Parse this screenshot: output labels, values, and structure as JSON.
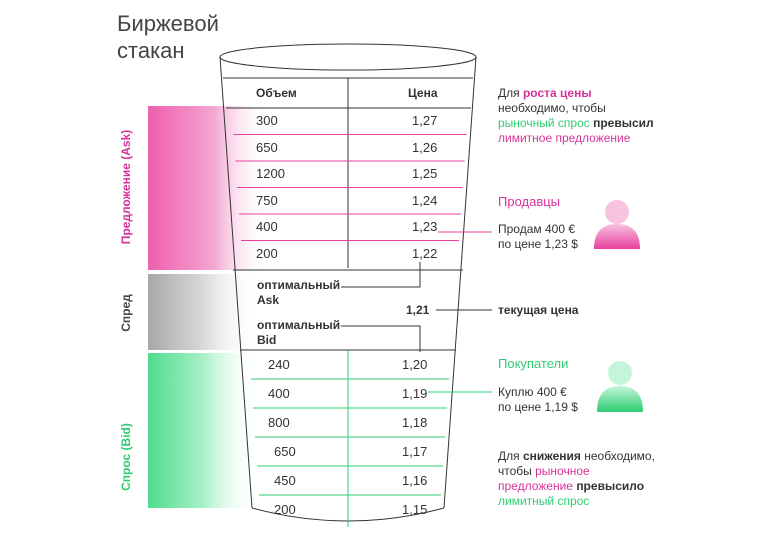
{
  "title": "Биржевой\nстакан",
  "colors": {
    "ask": "#e8409f",
    "bid": "#2ecc71",
    "spread": "#9e9e9e",
    "line_dark": "#333333"
  },
  "table": {
    "col_volume": "Объем",
    "col_price": "Цена",
    "asks": [
      {
        "volume": "300",
        "price": "1,27"
      },
      {
        "volume": "650",
        "price": "1,26"
      },
      {
        "volume": "1200",
        "price": "1,25"
      },
      {
        "volume": "750",
        "price": "1,24"
      },
      {
        "volume": "400",
        "price": "1,23"
      },
      {
        "volume": "200",
        "price": "1,22"
      }
    ],
    "bids": [
      {
        "volume": "240",
        "price": "1,20"
      },
      {
        "volume": "400",
        "price": "1,19"
      },
      {
        "volume": "800",
        "price": "1,18"
      },
      {
        "volume": "650",
        "price": "1,17"
      },
      {
        "volume": "450",
        "price": "1,16"
      },
      {
        "volume": "200",
        "price": "1,15"
      }
    ]
  },
  "spread": {
    "best_ask": "оптимальный\nAsk",
    "best_bid": "оптимальный\nBid",
    "current_price": "1,21",
    "current_price_label": "текущая цена"
  },
  "side_labels": {
    "ask": "Предложение (Ask)",
    "spread": "Спред",
    "bid": "Спрос (Bid)"
  },
  "notes": {
    "rise": {
      "p1": "Для ",
      "p2": "роста цены",
      "p3": " необходимо, чтобы ",
      "p4": "рыночный спрос",
      "p5": " ",
      "p6": "превысил",
      "p7": " ",
      "p8": "лимитное предложение"
    },
    "sellers": "Продавцы",
    "sell_offer": "Продам 400 €\nпо цене 1,23 $",
    "buyers": "Покупатели",
    "buy_offer": "Куплю 400 €\nпо цене 1,19 $",
    "fall": {
      "p1": "Для ",
      "p2": "снижения",
      "p3": " необходимо, чтобы ",
      "p4": "рыночное предложение",
      "p5": " ",
      "p6": "превысило",
      "p7": " ",
      "p8": "лимитный спрос"
    }
  }
}
